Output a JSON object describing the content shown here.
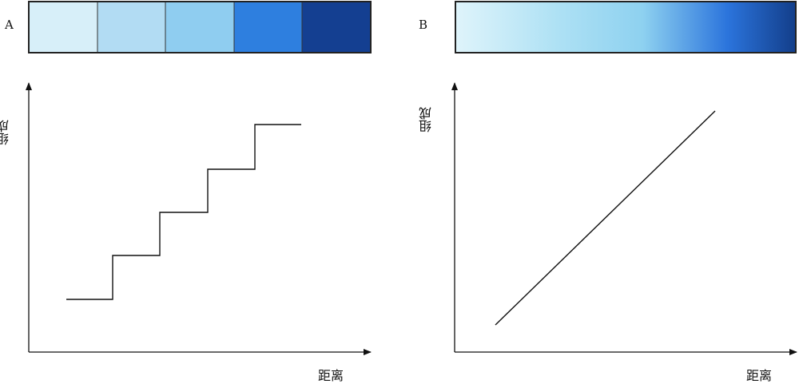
{
  "panelA": {
    "label": "A",
    "swatch_colors": [
      "#d7eff9",
      "#b2dcf3",
      "#8fcdf0",
      "#2e7fdf",
      "#143f91"
    ],
    "ylabel": "组成",
    "xlabel": "距离"
  },
  "panelB": {
    "label": "B",
    "gradient_colors": [
      "#dff4fb",
      "#aee1f4",
      "#8ed1f0",
      "#2b74dc",
      "#133e8a"
    ],
    "ylabel": "组成",
    "xlabel": "距离"
  },
  "colors": {
    "stroke": "#222222",
    "line": "#111111"
  }
}
